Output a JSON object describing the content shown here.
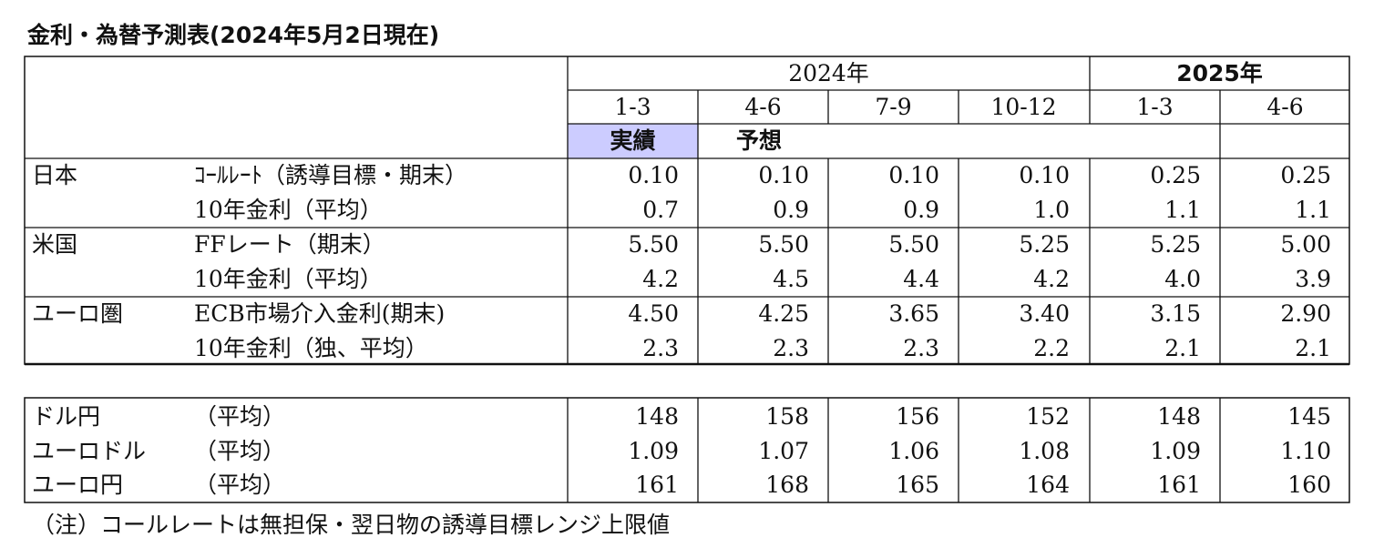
{
  "title": "金利・為替予測表(2024年5月2日現在)",
  "header": {
    "years": [
      "2024年",
      "2025年"
    ],
    "quarters": [
      "1-3",
      "4-6",
      "7-9",
      "10-12",
      "1-3",
      "4-6"
    ],
    "actual": "実績",
    "forecast": "予想"
  },
  "rates": [
    {
      "region": "日本",
      "rows": [
        {
          "label": "ｺｰﾙﾚｰﾄ（誘導目標・期末）",
          "values": [
            "0.10",
            "0.10",
            "0.10",
            "0.10",
            "0.25",
            "0.25"
          ]
        },
        {
          "label": "10年金利（平均）",
          "values": [
            "0.7",
            "0.9",
            "0.9",
            "1.0",
            "1.1",
            "1.1"
          ]
        }
      ]
    },
    {
      "region": "米国",
      "rows": [
        {
          "label": "FFレート（期末）",
          "values": [
            "5.50",
            "5.50",
            "5.50",
            "5.25",
            "5.25",
            "5.00"
          ]
        },
        {
          "label": "10年金利（平均）",
          "values": [
            "4.2",
            "4.5",
            "4.4",
            "4.2",
            "4.0",
            "3.9"
          ]
        }
      ]
    },
    {
      "region": "ユーロ圏",
      "rows": [
        {
          "label": "ECB市場介入金利(期末)",
          "values": [
            "4.50",
            "4.25",
            "3.65",
            "3.40",
            "3.15",
            "2.90"
          ]
        },
        {
          "label": "10年金利（独、平均）",
          "values": [
            "2.3",
            "2.3",
            "2.3",
            "2.2",
            "2.1",
            "2.1"
          ]
        }
      ]
    }
  ],
  "fx": [
    {
      "label": "ドル円",
      "basis": "（平均）",
      "values": [
        "148",
        "158",
        "156",
        "152",
        "148",
        "145"
      ]
    },
    {
      "label": "ユーロドル",
      "basis": "（平均）",
      "values": [
        "1.09",
        "1.07",
        "1.06",
        "1.08",
        "1.09",
        "1.10"
      ]
    },
    {
      "label": "ユーロ円",
      "basis": "（平均）",
      "values": [
        "161",
        "168",
        "165",
        "164",
        "161",
        "160"
      ]
    }
  ],
  "note": "（注）コールレートは無担保・翌日物の誘導目標レンジ上限値"
}
